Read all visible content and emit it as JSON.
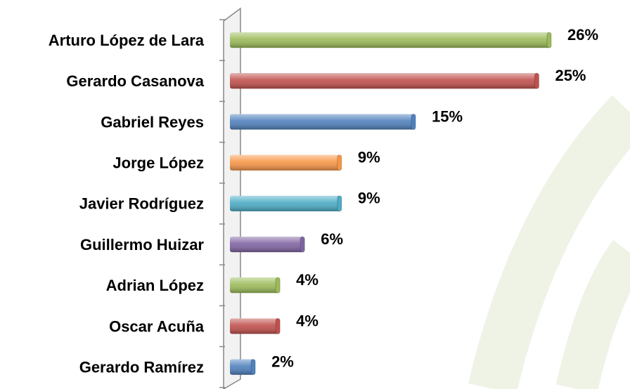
{
  "chart_data": {
    "type": "bar",
    "orientation": "horizontal",
    "categories": [
      "Arturo López de Lara",
      "Gerardo Casanova",
      "Gabriel Reyes",
      "Jorge López",
      "Javier Rodríguez",
      "Guillermo Huizar",
      "Adrian López",
      "Oscar Acuña",
      "Gerardo Ramírez"
    ],
    "values": [
      26,
      25,
      15,
      9,
      9,
      6,
      4,
      4,
      2
    ],
    "value_labels": [
      "26%",
      "25%",
      "15%",
      "9%",
      "9%",
      "6%",
      "4%",
      "4%",
      "2%"
    ],
    "colors": [
      "#9bbb59",
      "#c0504d",
      "#4f81bd",
      "#f79646",
      "#4bacc6",
      "#8064a2",
      "#9bbb59",
      "#c0504d",
      "#4f81bd"
    ],
    "xlim": [
      0,
      26
    ]
  }
}
